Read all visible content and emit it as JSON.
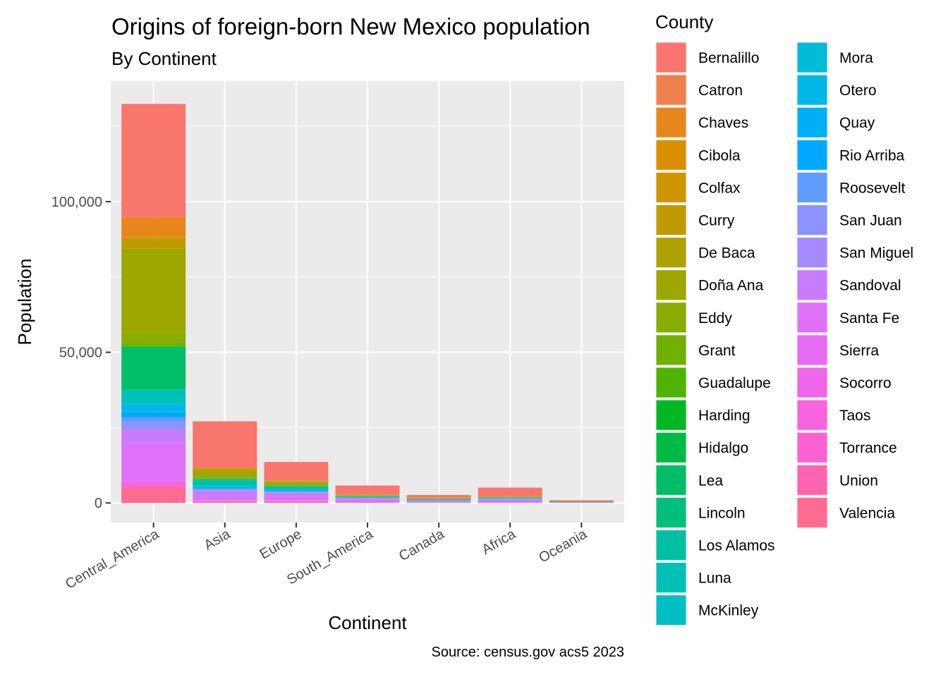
{
  "chart_data": {
    "type": "bar",
    "stacked": true,
    "title": "Origins of foreign-born New Mexico population",
    "subtitle": "By Continent",
    "xlabel": "Continent",
    "ylabel": "Population",
    "caption": "Source: census.gov acs5 2023",
    "categories": [
      "Central_America",
      "Asia",
      "Europe",
      "South_America",
      "Canada",
      "Africa",
      "Oceania"
    ],
    "ylim": [
      -6500,
      140000
    ],
    "yticks": [
      0,
      50000,
      100000
    ],
    "ytick_labels": [
      "0",
      "50,000",
      "100,000"
    ],
    "grid": true,
    "legend": {
      "title": "County",
      "position": "right"
    },
    "series": [
      {
        "name": "Bernalillo",
        "color": "#F8766D",
        "values": [
          37600,
          15400,
          6100,
          3000,
          1000,
          2800,
          400
        ]
      },
      {
        "name": "Catron",
        "color": "#F07F4E",
        "values": [
          100,
          0,
          100,
          0,
          0,
          0,
          0
        ]
      },
      {
        "name": "Chaves",
        "color": "#E7861B",
        "values": [
          6300,
          200,
          100,
          100,
          50,
          100,
          0
        ]
      },
      {
        "name": "Cibola",
        "color": "#DB8E00",
        "values": [
          300,
          100,
          0,
          0,
          0,
          0,
          0
        ]
      },
      {
        "name": "Colfax",
        "color": "#CE9500",
        "values": [
          300,
          0,
          100,
          0,
          0,
          0,
          0
        ]
      },
      {
        "name": "Curry",
        "color": "#C09B00",
        "values": [
          3300,
          700,
          300,
          100,
          100,
          100,
          0
        ]
      },
      {
        "name": "De Baca",
        "color": "#AFA100",
        "values": [
          100,
          0,
          0,
          0,
          0,
          0,
          0
        ]
      },
      {
        "name": "Doña Ana",
        "color": "#9DA700",
        "values": [
          27800,
          2200,
          900,
          300,
          200,
          200,
          100
        ]
      },
      {
        "name": "Eddy",
        "color": "#88AC00",
        "values": [
          3600,
          300,
          200,
          100,
          100,
          100,
          0
        ]
      },
      {
        "name": "Grant",
        "color": "#6FB000",
        "values": [
          1000,
          100,
          100,
          0,
          0,
          0,
          0
        ]
      },
      {
        "name": "Guadalupe",
        "color": "#4FB400",
        "values": [
          100,
          0,
          0,
          0,
          0,
          0,
          0
        ]
      },
      {
        "name": "Harding",
        "color": "#00B81F",
        "values": [
          50,
          0,
          0,
          0,
          0,
          0,
          0
        ]
      },
      {
        "name": "Hidalgo",
        "color": "#00BA42",
        "values": [
          500,
          0,
          0,
          0,
          0,
          0,
          0
        ]
      },
      {
        "name": "Lea",
        "color": "#00BE67",
        "values": [
          13200,
          300,
          200,
          200,
          100,
          100,
          0
        ]
      },
      {
        "name": "Lincoln",
        "color": "#00BF7D",
        "values": [
          600,
          100,
          100,
          0,
          0,
          0,
          0
        ]
      },
      {
        "name": "Los Alamos",
        "color": "#00C0A3",
        "values": [
          300,
          1800,
          900,
          100,
          200,
          100,
          100
        ]
      },
      {
        "name": "Luna",
        "color": "#00C1B6",
        "values": [
          3900,
          100,
          0,
          0,
          0,
          0,
          0
        ]
      },
      {
        "name": "McKinley",
        "color": "#00BFC4",
        "values": [
          500,
          300,
          100,
          0,
          0,
          100,
          0
        ]
      },
      {
        "name": "Mora",
        "color": "#00BCD8",
        "values": [
          100,
          0,
          0,
          0,
          0,
          0,
          0
        ]
      },
      {
        "name": "Otero",
        "color": "#00B8E7",
        "values": [
          2500,
          800,
          500,
          100,
          100,
          100,
          100
        ]
      },
      {
        "name": "Quay",
        "color": "#00B0F6",
        "values": [
          200,
          0,
          0,
          0,
          0,
          0,
          0
        ]
      },
      {
        "name": "Rio Arriba",
        "color": "#00A9FF",
        "values": [
          1800,
          100,
          100,
          100,
          0,
          0,
          0
        ]
      },
      {
        "name": "Roosevelt",
        "color": "#619CFF",
        "values": [
          1100,
          100,
          100,
          100,
          0,
          100,
          0
        ]
      },
      {
        "name": "San Juan",
        "color": "#8B93FF",
        "values": [
          2100,
          300,
          200,
          100,
          100,
          100,
          0
        ]
      },
      {
        "name": "San Miguel",
        "color": "#A58AFF",
        "values": [
          1000,
          100,
          100,
          100,
          0,
          0,
          0
        ]
      },
      {
        "name": "Sandoval",
        "color": "#C77CFF",
        "values": [
          4300,
          2400,
          1100,
          400,
          300,
          700,
          100
        ]
      },
      {
        "name": "Santa Fe",
        "color": "#DF70F8",
        "values": [
          12400,
          800,
          1500,
          600,
          200,
          300,
          100
        ]
      },
      {
        "name": "Sierra",
        "color": "#E76BF3",
        "values": [
          300,
          100,
          100,
          0,
          0,
          0,
          0
        ]
      },
      {
        "name": "Socorro",
        "color": "#F066E9",
        "values": [
          500,
          200,
          100,
          100,
          0,
          0,
          0
        ]
      },
      {
        "name": "Taos",
        "color": "#F863DF",
        "values": [
          800,
          100,
          300,
          100,
          100,
          0,
          0
        ]
      },
      {
        "name": "Torrance",
        "color": "#FD61D1",
        "values": [
          600,
          100,
          0,
          0,
          0,
          0,
          0
        ]
      },
      {
        "name": "Union",
        "color": "#FF64B0",
        "values": [
          100,
          0,
          0,
          0,
          0,
          0,
          0
        ]
      },
      {
        "name": "Valencia",
        "color": "#FF6C91",
        "values": [
          5100,
          400,
          300,
          200,
          100,
          200,
          0
        ]
      }
    ]
  }
}
